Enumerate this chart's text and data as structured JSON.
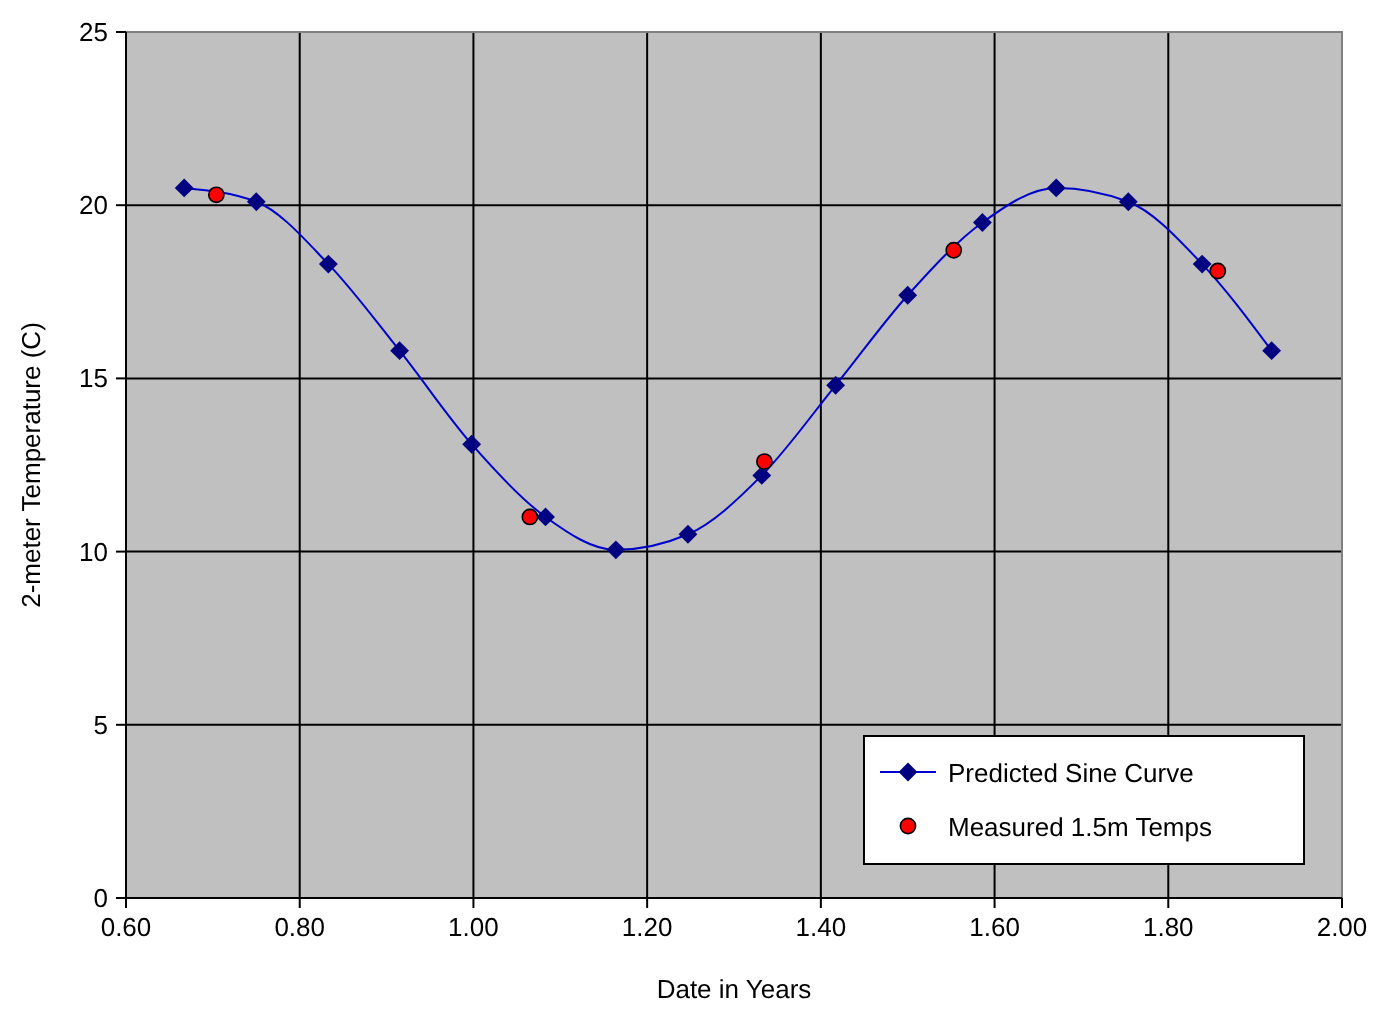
{
  "chart_data": {
    "type": "line",
    "xlabel": "Date in Years",
    "ylabel": "2-meter Temperature (C)",
    "xlim": [
      0.6,
      2.0
    ],
    "xticks": [
      {
        "value": 0.6,
        "label": "0.60"
      },
      {
        "value": 0.8,
        "label": "0.80"
      },
      {
        "value": 1.0,
        "label": "1.00"
      },
      {
        "value": 1.2,
        "label": "1.20"
      },
      {
        "value": 1.4,
        "label": "1.40"
      },
      {
        "value": 1.6,
        "label": "1.60"
      },
      {
        "value": 1.8,
        "label": "1.80"
      },
      {
        "value": 2.0,
        "label": "2.00"
      }
    ],
    "ylim": [
      0,
      25
    ],
    "yticks": [
      0,
      5,
      10,
      15,
      20,
      25
    ],
    "grid": true,
    "legend": "bottom right",
    "series": [
      {
        "name": "Predicted Sine Curve",
        "type": "line",
        "marker": "diamond",
        "color": "#0000cc",
        "x": [
          0.667,
          0.75,
          0.833,
          0.915,
          0.998,
          1.083,
          1.164,
          1.247,
          1.332,
          1.417,
          1.5,
          1.586,
          1.671,
          1.754,
          1.839,
          1.919
        ],
        "values": [
          20.5,
          20.1,
          18.3,
          15.8,
          13.1,
          11.0,
          10.05,
          10.5,
          12.2,
          14.8,
          17.4,
          19.5,
          20.5,
          20.1,
          18.3,
          15.8
        ]
      },
      {
        "name": "Measured 1.5m Temps",
        "type": "scatter",
        "marker": "circle",
        "color": "#ff0000",
        "x": [
          0.704,
          1.065,
          1.335,
          1.553,
          1.857
        ],
        "values": [
          20.3,
          11.0,
          12.6,
          18.7,
          18.1
        ]
      }
    ]
  }
}
